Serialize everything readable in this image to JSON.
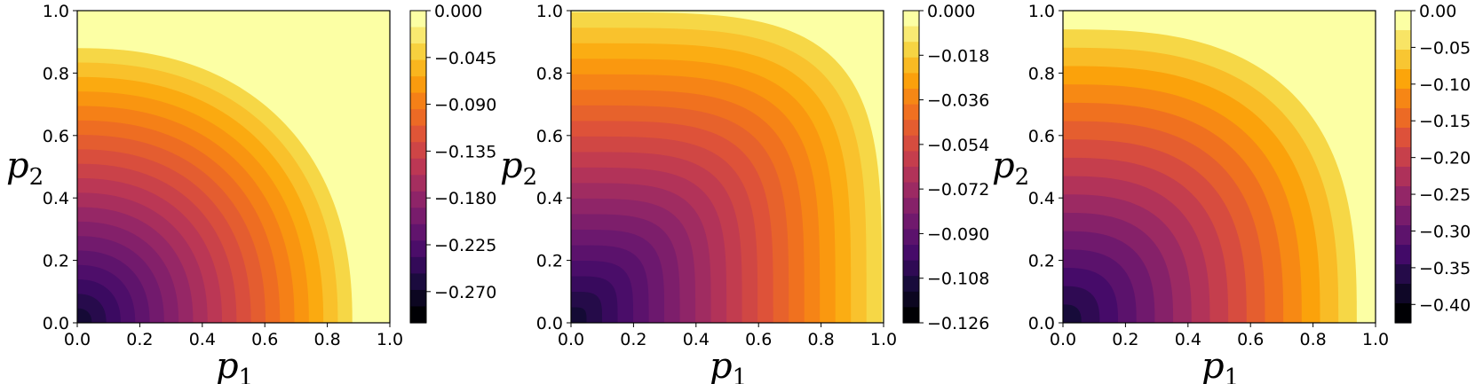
{
  "chart_data": [
    {
      "type": "heatmap",
      "subtype": "filled-contour",
      "colormap": "inferno",
      "xlabel": "p",
      "xlabel_sub": "1",
      "ylabel": "p",
      "ylabel_sub": "2",
      "xlim": [
        0.0,
        1.0
      ],
      "ylim": [
        0.0,
        1.0
      ],
      "x_ticks": [
        "0.0",
        "0.2",
        "0.4",
        "0.6",
        "0.8",
        "1.0"
      ],
      "y_ticks": [
        "0.0",
        "0.2",
        "0.4",
        "0.6",
        "0.8",
        "1.0"
      ],
      "min_level": -0.3,
      "max_level": 0.0,
      "num_levels": 20,
      "max_value_corner": [
        0.0,
        0.0
      ],
      "zero_contour_radius": 0.88,
      "contour_shape_exponent": 2.3,
      "colorbar_ticks": [
        "0.000",
        "−0.045",
        "−0.090",
        "−0.135",
        "−0.180",
        "−0.225",
        "−0.270"
      ],
      "colorbar_tick_values": [
        0.0,
        -0.045,
        -0.09,
        -0.135,
        -0.18,
        -0.225,
        -0.27
      ]
    },
    {
      "type": "heatmap",
      "subtype": "filled-contour",
      "colormap": "inferno",
      "xlabel": "p",
      "xlabel_sub": "1",
      "ylabel": "p",
      "ylabel_sub": "2",
      "xlim": [
        0.0,
        1.0
      ],
      "ylim": [
        0.0,
        1.0
      ],
      "x_ticks": [
        "0.0",
        "0.2",
        "0.4",
        "0.6",
        "0.8",
        "1.0"
      ],
      "y_ticks": [
        "0.0",
        "0.2",
        "0.4",
        "0.6",
        "0.8",
        "1.0"
      ],
      "min_level": -0.126,
      "max_level": 0.0,
      "num_levels": 21,
      "max_value_corner": [
        0.0,
        0.0
      ],
      "zero_contour_radius": 0.995,
      "contour_shape_exponent": 4.2,
      "colorbar_ticks": [
        "0.000",
        "−0.018",
        "−0.036",
        "−0.054",
        "−0.072",
        "−0.090",
        "−0.108",
        "−0.126"
      ],
      "colorbar_tick_values": [
        0.0,
        -0.018,
        -0.036,
        -0.054,
        -0.072,
        -0.09,
        -0.108,
        -0.126
      ]
    },
    {
      "type": "heatmap",
      "subtype": "filled-contour",
      "colormap": "inferno",
      "xlabel": "p",
      "xlabel_sub": "1",
      "ylabel": "p",
      "ylabel_sub": "2",
      "xlim": [
        0.0,
        1.0
      ],
      "ylim": [
        0.0,
        1.0
      ],
      "x_ticks": [
        "0.0",
        "0.2",
        "0.4",
        "0.6",
        "0.8",
        "1.0"
      ],
      "y_ticks": [
        "0.0",
        "0.2",
        "0.4",
        "0.6",
        "0.8",
        "1.0"
      ],
      "min_level": -0.425,
      "max_level": 0.0,
      "num_levels": 17,
      "max_value_corner": [
        0.0,
        0.0
      ],
      "zero_contour_radius": 0.94,
      "contour_shape_exponent": 2.8,
      "colorbar_ticks": [
        "0.00",
        "−0.05",
        "−0.10",
        "−0.15",
        "−0.20",
        "−0.25",
        "−0.30",
        "−0.35",
        "−0.40"
      ],
      "colorbar_tick_values": [
        0.0,
        -0.05,
        -0.1,
        -0.15,
        -0.2,
        -0.25,
        -0.3,
        -0.35,
        -0.4
      ]
    }
  ]
}
